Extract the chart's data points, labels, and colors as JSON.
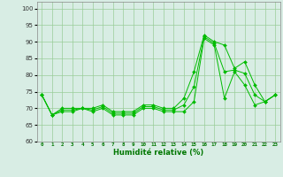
{
  "x": [
    0,
    1,
    2,
    3,
    4,
    5,
    6,
    7,
    8,
    9,
    10,
    11,
    12,
    13,
    14,
    15,
    16,
    17,
    18,
    19,
    20,
    21,
    22,
    23
  ],
  "y_min": [
    74,
    68,
    69,
    69,
    70,
    69,
    70,
    68,
    68,
    68,
    70,
    70,
    69,
    69,
    69,
    72,
    91,
    89,
    73,
    81,
    77,
    71,
    72,
    74
  ],
  "y_max": [
    74,
    68,
    70,
    70,
    70,
    70,
    71,
    69,
    69,
    69,
    71,
    71,
    70,
    70,
    73,
    81,
    92,
    90,
    89,
    82,
    84,
    77,
    72,
    74
  ],
  "y_mean": [
    74,
    68,
    69.5,
    69.5,
    70,
    69.5,
    70.5,
    68.5,
    68.5,
    68.5,
    70.5,
    70.5,
    69.5,
    69.5,
    71,
    76.5,
    91.5,
    89.5,
    81,
    81.5,
    80.5,
    74,
    72,
    74
  ],
  "line_color": "#00bb00",
  "bg_color": "#d8ede4",
  "grid_color": "#99cc99",
  "xlabel": "Humidité relative (%)",
  "ylabel_ticks": [
    60,
    65,
    70,
    75,
    80,
    85,
    90,
    95,
    100
  ],
  "ylim": [
    60,
    102
  ],
  "xlim": [
    -0.5,
    23.5
  ]
}
